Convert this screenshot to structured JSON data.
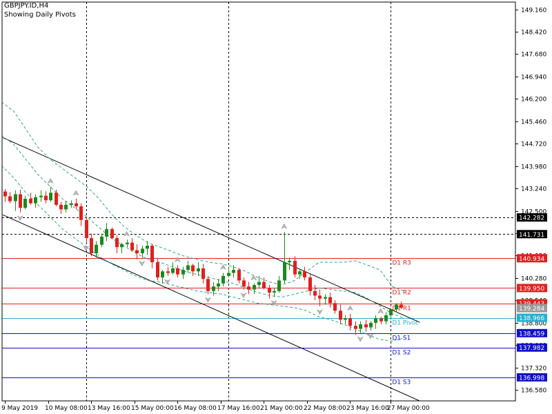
{
  "chart_data": {
    "type": "candlestick",
    "symbol_title": "GBPJPY.ID,H4",
    "subtitle": "Showing Daily Pivots",
    "ylim": [
      136.22,
      149.4
    ],
    "y_ticks": [
      "149.160",
      "148.420",
      "147.680",
      "146.940",
      "146.200",
      "145.460",
      "144.720",
      "143.980",
      "143.240",
      "142.500",
      "141.760",
      "141.020",
      "140.280",
      "139.540",
      "138.800",
      "138.060",
      "137.320",
      "136.580"
    ],
    "x_tick_labels": [
      "9 May 2019",
      "10 May 08:00",
      "13 May 16:00",
      "15 May 00:00",
      "16 May 08:00",
      "17 May 16:00",
      "21 May 00:00",
      "22 May 08:00",
      "23 May 16:00",
      "27 May 00:00"
    ],
    "pivot_levels": [
      {
        "label": "D1 R3",
        "value": 140.934,
        "value_label": "140.934",
        "color": "#e0201e"
      },
      {
        "label": "D1 R2",
        "value": 139.95,
        "value_label": "139.950",
        "color": "#e0201e"
      },
      {
        "label": "D1 R1",
        "value": 139.443,
        "value_label": "139.443",
        "color": "#e0201e"
      },
      {
        "label": "D1 Pivot",
        "value": 138.966,
        "value_label": "138.966",
        "color": "#22b0d0"
      },
      {
        "label": "D1 S1",
        "value": 138.459,
        "value_label": "138.459",
        "color": "#1010c8"
      },
      {
        "label": "D1 S2",
        "value": 137.982,
        "value_label": "137.982",
        "color": "#1010c8"
      },
      {
        "label": "D1 S3",
        "value": 136.998,
        "value_label": "136.998",
        "color": "#1010c8"
      }
    ],
    "horizontal_dotted_levels": [
      {
        "value": 142.282,
        "value_label": "142.282"
      },
      {
        "value": 141.731,
        "value_label": "141.731"
      }
    ],
    "current_price": {
      "value": 139.284,
      "value_label": "139.284"
    },
    "candles": [
      [
        143.14,
        143.22,
        142.8,
        142.98
      ],
      [
        142.98,
        143.12,
        142.75,
        142.82
      ],
      [
        142.82,
        143.18,
        142.5,
        143.05
      ],
      [
        143.05,
        143.2,
        142.45,
        142.6
      ],
      [
        142.6,
        143.0,
        142.55,
        142.9
      ],
      [
        142.9,
        143.1,
        142.7,
        142.75
      ],
      [
        142.75,
        143.05,
        142.6,
        142.95
      ],
      [
        142.95,
        143.18,
        142.8,
        143.0
      ],
      [
        143.0,
        143.15,
        142.75,
        142.85
      ],
      [
        142.85,
        143.3,
        142.8,
        143.1
      ],
      [
        143.1,
        143.2,
        142.65,
        142.7
      ],
      [
        142.7,
        142.8,
        142.4,
        142.55
      ],
      [
        142.55,
        142.82,
        142.45,
        142.7
      ],
      [
        142.7,
        142.85,
        142.6,
        142.75
      ],
      [
        142.75,
        142.9,
        142.55,
        142.65
      ],
      [
        142.65,
        142.75,
        142.0,
        142.2
      ],
      [
        142.2,
        142.3,
        141.45,
        141.6
      ],
      [
        141.6,
        141.75,
        141.0,
        141.1
      ],
      [
        141.1,
        141.5,
        140.95,
        141.38
      ],
      [
        141.38,
        141.75,
        141.3,
        141.65
      ],
      [
        141.65,
        142.1,
        141.5,
        141.9
      ],
      [
        141.9,
        141.95,
        141.55,
        141.6
      ],
      [
        141.6,
        141.7,
        141.1,
        141.3
      ],
      [
        141.3,
        141.45,
        141.1,
        141.4
      ],
      [
        141.4,
        141.55,
        141.3,
        141.45
      ],
      [
        141.45,
        141.6,
        141.15,
        141.2
      ],
      [
        141.2,
        141.4,
        140.9,
        141.1
      ],
      [
        141.1,
        141.35,
        140.95,
        141.25
      ],
      [
        141.25,
        141.5,
        141.05,
        141.35
      ],
      [
        141.35,
        141.4,
        140.6,
        140.8
      ],
      [
        140.8,
        140.95,
        140.2,
        140.3
      ],
      [
        140.3,
        140.55,
        140.1,
        140.5
      ],
      [
        140.5,
        140.65,
        140.35,
        140.45
      ],
      [
        140.45,
        140.8,
        140.4,
        140.6
      ],
      [
        140.6,
        140.7,
        140.3,
        140.4
      ],
      [
        140.4,
        140.65,
        140.25,
        140.55
      ],
      [
        140.55,
        140.85,
        140.45,
        140.7
      ],
      [
        140.7,
        140.75,
        140.35,
        140.5
      ],
      [
        140.5,
        140.8,
        140.35,
        140.6
      ],
      [
        140.6,
        140.75,
        140.1,
        140.25
      ],
      [
        140.25,
        140.35,
        139.75,
        139.85
      ],
      [
        139.85,
        140.15,
        139.7,
        140.0
      ],
      [
        140.0,
        140.25,
        139.85,
        140.1
      ],
      [
        140.1,
        140.45,
        140.0,
        140.35
      ],
      [
        140.35,
        140.65,
        140.3,
        140.45
      ],
      [
        140.45,
        140.7,
        140.3,
        140.55
      ],
      [
        140.55,
        140.6,
        140.1,
        140.2
      ],
      [
        140.2,
        140.3,
        139.9,
        140.0
      ],
      [
        140.0,
        140.15,
        139.75,
        139.9
      ],
      [
        139.9,
        140.1,
        139.75,
        140.05
      ],
      [
        140.05,
        140.35,
        139.95,
        140.15
      ],
      [
        140.15,
        140.3,
        139.9,
        139.95
      ],
      [
        139.95,
        140.05,
        139.6,
        139.8
      ],
      [
        139.8,
        139.95,
        139.65,
        139.85
      ],
      [
        139.85,
        140.35,
        139.8,
        140.2
      ],
      [
        140.2,
        141.8,
        140.1,
        140.8
      ],
      [
        140.8,
        140.95,
        140.55,
        140.85
      ],
      [
        140.85,
        141.0,
        140.3,
        140.4
      ],
      [
        140.4,
        140.55,
        140.25,
        140.5
      ],
      [
        140.5,
        140.65,
        140.2,
        140.3
      ],
      [
        140.3,
        140.4,
        139.7,
        139.85
      ],
      [
        139.85,
        140.05,
        139.55,
        139.7
      ],
      [
        139.7,
        139.9,
        139.35,
        139.6
      ],
      [
        139.6,
        139.75,
        139.4,
        139.65
      ],
      [
        139.65,
        139.8,
        139.3,
        139.45
      ],
      [
        139.45,
        139.55,
        139.1,
        139.2
      ],
      [
        139.2,
        139.4,
        138.75,
        138.9
      ],
      [
        138.9,
        139.05,
        138.75,
        138.95
      ],
      [
        138.95,
        139.1,
        138.55,
        138.7
      ],
      [
        138.7,
        138.85,
        138.4,
        138.6
      ],
      [
        138.6,
        138.85,
        138.45,
        138.75
      ],
      [
        138.75,
        138.9,
        138.5,
        138.65
      ],
      [
        138.65,
        138.85,
        138.55,
        138.8
      ],
      [
        138.8,
        139.05,
        138.6,
        138.95
      ],
      [
        138.95,
        139.0,
        138.75,
        138.85
      ],
      [
        138.85,
        139.15,
        138.75,
        139.05
      ],
      [
        139.05,
        139.3,
        138.9,
        139.25
      ],
      [
        139.25,
        139.45,
        139.15,
        139.4
      ],
      [
        139.4,
        139.5,
        139.25,
        139.3
      ]
    ],
    "bollinger": {
      "upper": [
        146.1,
        145.8,
        145.2,
        144.6,
        144.2,
        143.9,
        143.6,
        143.3,
        142.9,
        142.4,
        142.0,
        141.7,
        141.45,
        141.3,
        141.15,
        141.0,
        140.9,
        140.8,
        140.75,
        140.65,
        140.5,
        140.3,
        140.15,
        140.05,
        140.2,
        140.5,
        140.8,
        140.8,
        140.8,
        140.85,
        140.7,
        140.55,
        140.0,
        139.85
      ],
      "middle": [
        145.0,
        144.7,
        144.2,
        143.7,
        143.3,
        142.9,
        142.6,
        142.3,
        141.95,
        141.6,
        141.35,
        141.1,
        140.9,
        140.8,
        140.65,
        140.5,
        140.4,
        140.3,
        140.2,
        140.1,
        139.95,
        139.8,
        139.7,
        139.65,
        139.75,
        139.85,
        139.95,
        139.9,
        139.85,
        139.8,
        139.6,
        139.35,
        139.1,
        138.95
      ],
      "lower": [
        144.0,
        143.6,
        143.1,
        142.7,
        142.3,
        141.9,
        141.6,
        141.3,
        141.0,
        140.75,
        140.55,
        140.35,
        140.2,
        140.15,
        140.05,
        139.95,
        139.85,
        139.8,
        139.75,
        139.65,
        139.55,
        139.45,
        139.4,
        139.35,
        139.3,
        139.2,
        139.0,
        138.9,
        138.75,
        138.6,
        138.4,
        138.25,
        138.2,
        138.3
      ]
    },
    "channel_lines": [
      {
        "name": "upper",
        "p1": [
          0,
          144.92
        ],
        "p2": [
          79,
          138.6
        ]
      },
      {
        "name": "lower",
        "p1": [
          0,
          142.37
        ],
        "p2": [
          79,
          136.0
        ]
      }
    ],
    "fractal_markers_up": [
      9,
      14,
      24,
      34,
      43,
      49,
      55,
      68,
      74
    ],
    "fractal_markers_down": [
      3,
      16,
      27,
      32,
      40,
      47,
      53,
      62,
      70,
      72
    ],
    "vertical_dotted_candles": [
      16,
      44,
      76
    ],
    "colors": {
      "bull": "#1a8a1a",
      "bear": "#e0201e",
      "band": "#2aa58a",
      "grid": "#000000"
    }
  }
}
